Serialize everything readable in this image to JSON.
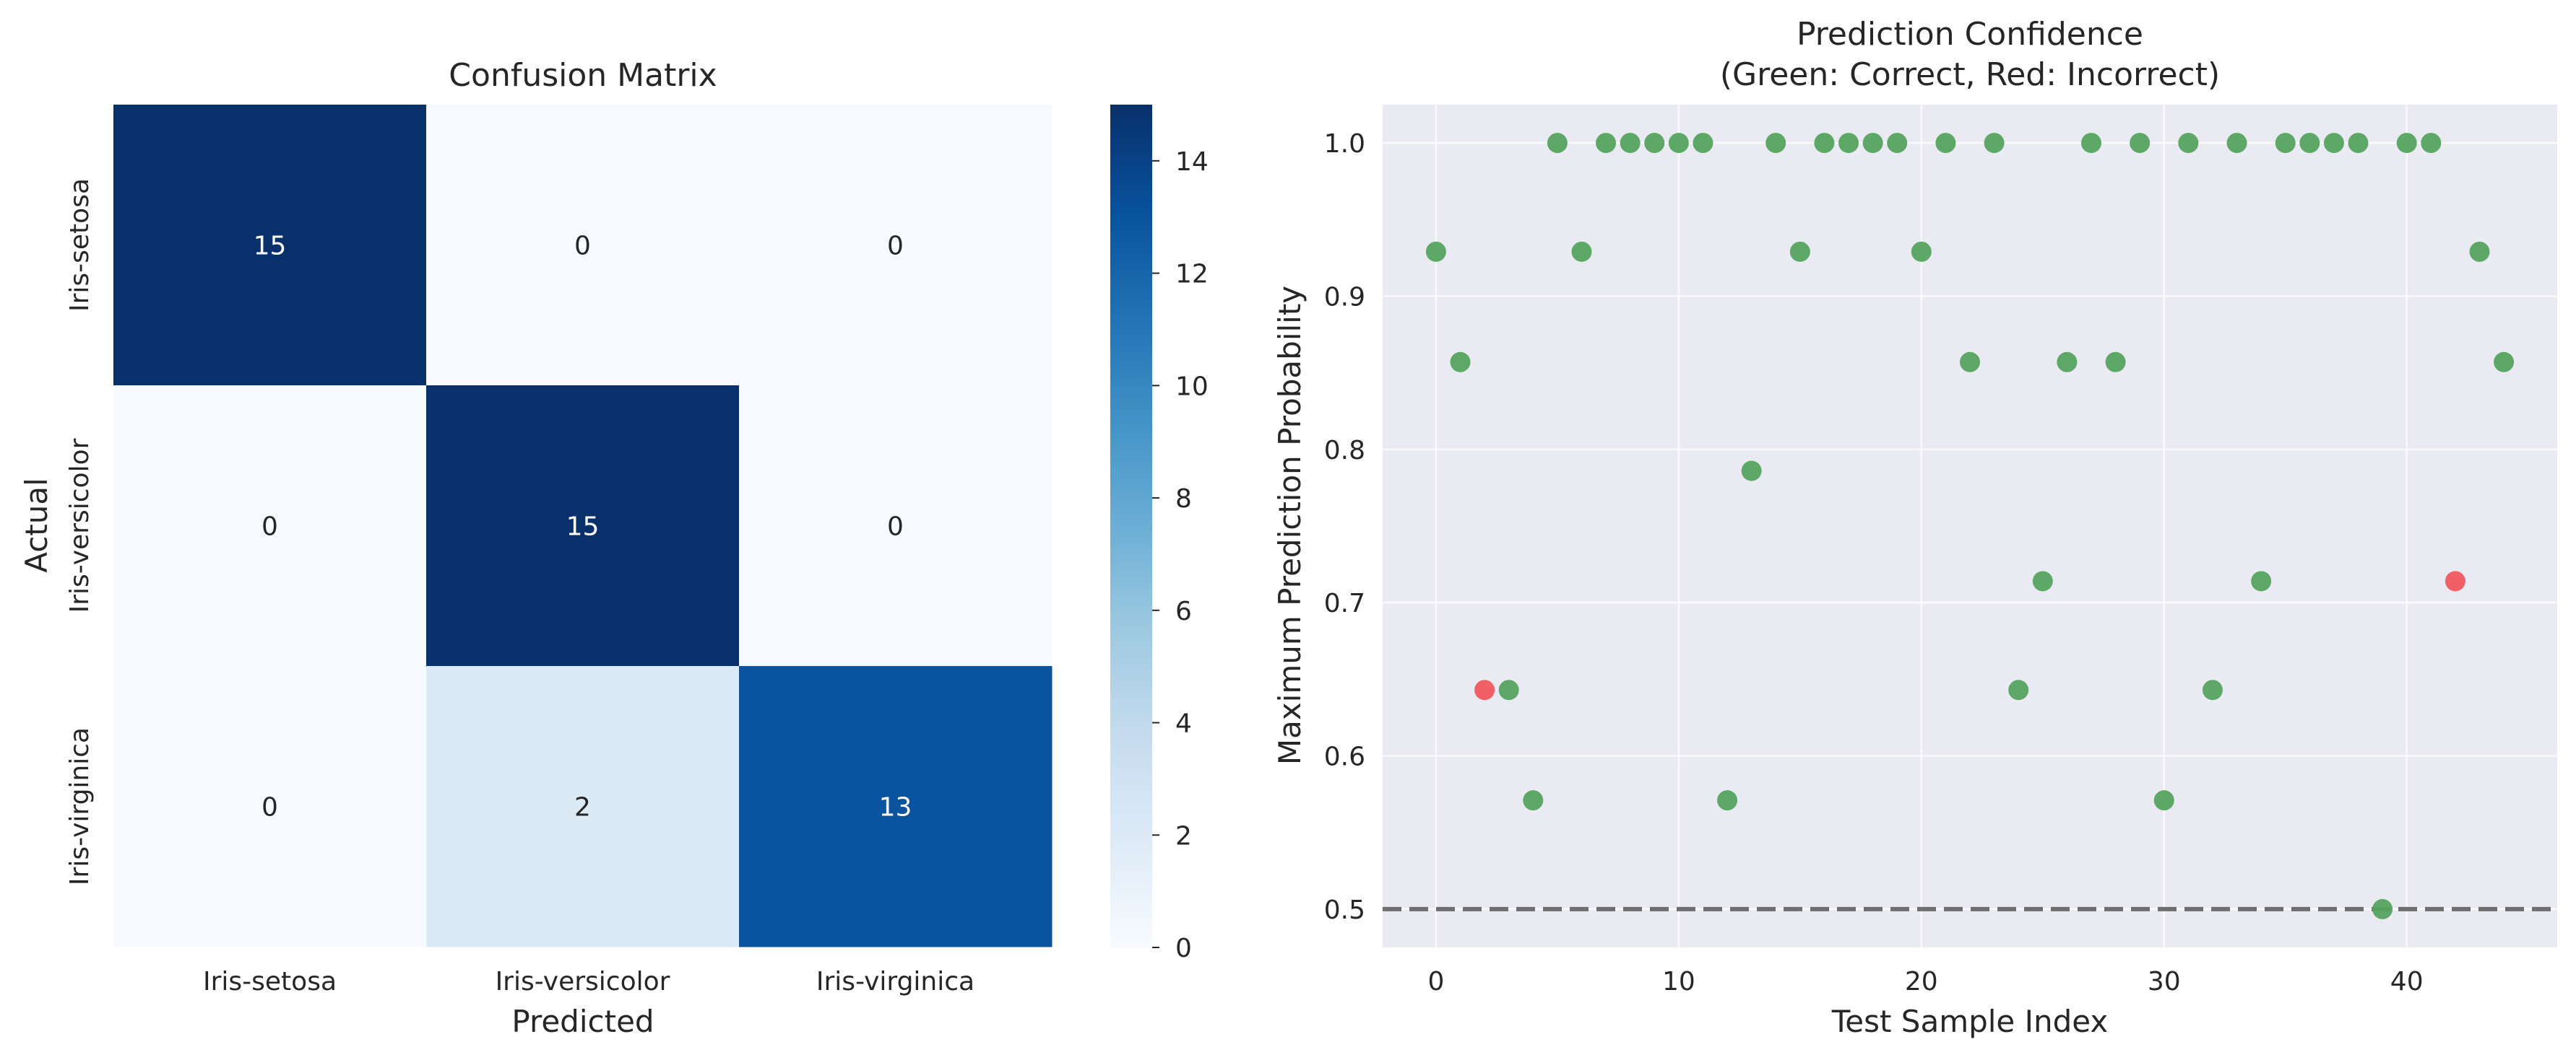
{
  "chart_data": [
    {
      "type": "heatmap",
      "title": "Confusion Matrix",
      "xlabel": "Predicted",
      "ylabel": "Actual",
      "x_categories": [
        "Iris-setosa",
        "Iris-versicolor",
        "Iris-virginica"
      ],
      "y_categories": [
        "Iris-setosa",
        "Iris-versicolor",
        "Iris-virginica"
      ],
      "matrix": [
        [
          15,
          0,
          0
        ],
        [
          0,
          15,
          0
        ],
        [
          0,
          2,
          13
        ]
      ],
      "colorbar": {
        "min": 0,
        "max": 15,
        "ticks": [
          0,
          2,
          4,
          6,
          8,
          10,
          12,
          14
        ],
        "colormap": "Blues"
      }
    },
    {
      "type": "scatter",
      "title": [
        "Prediction Confidence",
        "(Green: Correct, Red: Incorrect)"
      ],
      "xlabel": "Test Sample Index",
      "ylabel": "Maximum Prediction Probability",
      "xlim": [
        -2.2,
        46.2
      ],
      "ylim": [
        0.475,
        1.025
      ],
      "xticks": [
        0,
        10,
        20,
        30,
        40
      ],
      "yticks": [
        0.5,
        0.6,
        0.7,
        0.8,
        0.9,
        1.0
      ],
      "grid": true,
      "reference_line": {
        "y": 0.5,
        "style": "dashed",
        "color": "#6e6e6e"
      },
      "colors": {
        "correct": "#55a35f",
        "incorrect": "#f0595e",
        "background": "#eaeaf2"
      },
      "x": [
        0,
        1,
        2,
        3,
        4,
        5,
        6,
        7,
        8,
        9,
        10,
        11,
        12,
        13,
        14,
        15,
        16,
        17,
        18,
        19,
        20,
        21,
        22,
        23,
        24,
        25,
        26,
        27,
        28,
        29,
        30,
        31,
        32,
        33,
        34,
        35,
        36,
        37,
        38,
        39,
        40,
        41,
        42,
        43,
        44
      ],
      "y": [
        0.929,
        0.857,
        0.643,
        0.643,
        0.571,
        1.0,
        0.929,
        1.0,
        1.0,
        1.0,
        1.0,
        1.0,
        0.571,
        0.786,
        1.0,
        0.929,
        1.0,
        1.0,
        1.0,
        1.0,
        0.929,
        1.0,
        0.857,
        1.0,
        0.643,
        0.714,
        0.857,
        1.0,
        0.857,
        1.0,
        0.571,
        1.0,
        0.643,
        1.0,
        0.714,
        1.0,
        1.0,
        1.0,
        1.0,
        0.5,
        1.0,
        1.0,
        0.714,
        0.929,
        0.857
      ],
      "correct": [
        true,
        true,
        false,
        true,
        true,
        true,
        true,
        true,
        true,
        true,
        true,
        true,
        true,
        true,
        true,
        true,
        true,
        true,
        true,
        true,
        true,
        true,
        true,
        true,
        true,
        true,
        true,
        true,
        true,
        true,
        true,
        true,
        true,
        true,
        true,
        true,
        true,
        true,
        true,
        true,
        true,
        true,
        false,
        true,
        true
      ]
    }
  ]
}
